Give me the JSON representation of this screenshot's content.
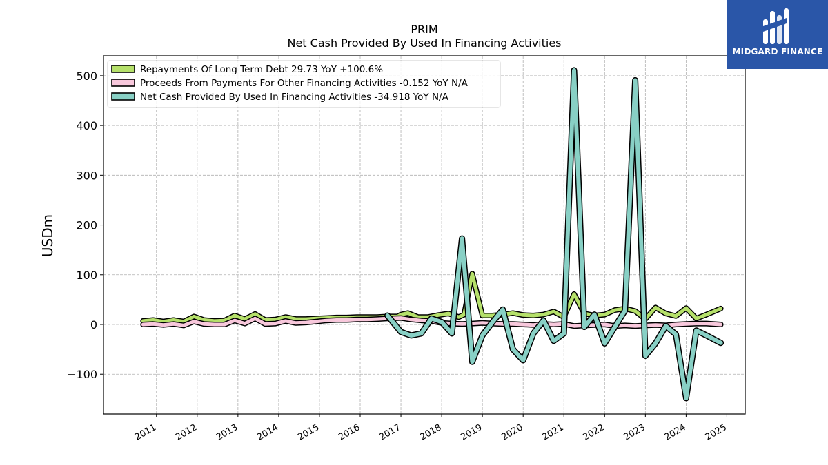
{
  "chart_data": {
    "type": "line",
    "title": "PRIM",
    "subtitle": "Net Cash Provided By Used In Financing Activities",
    "ylabel": "USDm",
    "xlabel": "",
    "ylim": [
      -180,
      540
    ],
    "xlim": [
      2009.7,
      2025.45
    ],
    "yticks": [
      -100,
      0,
      100,
      200,
      300,
      400,
      500
    ],
    "ytick_labels": [
      "−100",
      "0",
      "100",
      "200",
      "300",
      "400",
      "500"
    ],
    "xticks": [
      2011,
      2012,
      2013,
      2014,
      2015,
      2016,
      2017,
      2018,
      2019,
      2020,
      2021,
      2022,
      2023,
      2024,
      2025
    ],
    "xtick_labels": [
      "2011",
      "2012",
      "2013",
      "2014",
      "2015",
      "2016",
      "2017",
      "2018",
      "2019",
      "2020",
      "2021",
      "2022",
      "2023",
      "2024",
      "2025"
    ],
    "grid": true,
    "legend_position": "top-left",
    "series": [
      {
        "name": "Repayments Of Long Term Debt",
        "legend_label": "Repayments Of Long Term Debt  29.73 YoY +100.6%",
        "color": "#b5e06a",
        "points": [
          [
            2010.67,
            7
          ],
          [
            2010.92,
            9
          ],
          [
            2011.17,
            6
          ],
          [
            2011.42,
            9
          ],
          [
            2011.67,
            6
          ],
          [
            2011.92,
            16
          ],
          [
            2012.17,
            9
          ],
          [
            2012.42,
            7
          ],
          [
            2012.67,
            8
          ],
          [
            2012.92,
            18
          ],
          [
            2013.17,
            11
          ],
          [
            2013.42,
            21
          ],
          [
            2013.67,
            9
          ],
          [
            2013.92,
            10
          ],
          [
            2014.17,
            15
          ],
          [
            2014.42,
            11
          ],
          [
            2014.67,
            11
          ],
          [
            2014.92,
            12
          ],
          [
            2015.17,
            13
          ],
          [
            2015.42,
            14
          ],
          [
            2015.67,
            14
          ],
          [
            2015.92,
            15
          ],
          [
            2016.17,
            15
          ],
          [
            2016.42,
            15
          ],
          [
            2016.67,
            16
          ],
          [
            2016.92,
            16
          ],
          [
            2017.0,
            20
          ],
          [
            2017.17,
            23
          ],
          [
            2017.42,
            15
          ],
          [
            2017.67,
            15
          ],
          [
            2017.92,
            19
          ],
          [
            2018.17,
            22
          ],
          [
            2018.42,
            15
          ],
          [
            2018.55,
            20
          ],
          [
            2018.75,
            102
          ],
          [
            2019.0,
            18
          ],
          [
            2019.25,
            18
          ],
          [
            2019.5,
            20
          ],
          [
            2019.75,
            23
          ],
          [
            2020.0,
            19
          ],
          [
            2020.25,
            18
          ],
          [
            2020.5,
            20
          ],
          [
            2020.75,
            26
          ],
          [
            2021.0,
            15
          ],
          [
            2021.25,
            61
          ],
          [
            2021.5,
            22
          ],
          [
            2021.75,
            18
          ],
          [
            2022.0,
            20
          ],
          [
            2022.25,
            29
          ],
          [
            2022.5,
            32
          ],
          [
            2022.75,
            27
          ],
          [
            2023.0,
            11
          ],
          [
            2023.25,
            34
          ],
          [
            2023.5,
            22
          ],
          [
            2023.75,
            17
          ],
          [
            2024.0,
            33
          ],
          [
            2024.25,
            12
          ],
          [
            2024.5,
            20
          ],
          [
            2024.85,
            32
          ]
        ]
      },
      {
        "name": "Proceeds From Payments For Other Financing Activities",
        "legend_label": "Proceeds From Payments For Other Financing Activities  -0.152 YoY N/A",
        "color": "#f8c8dc",
        "points": [
          [
            2010.67,
            0
          ],
          [
            2010.92,
            1
          ],
          [
            2011.17,
            -1
          ],
          [
            2011.42,
            1
          ],
          [
            2011.67,
            -2
          ],
          [
            2011.92,
            6
          ],
          [
            2012.17,
            1
          ],
          [
            2012.42,
            0
          ],
          [
            2012.67,
            0
          ],
          [
            2012.92,
            8
          ],
          [
            2013.17,
            2
          ],
          [
            2013.42,
            12
          ],
          [
            2013.67,
            1
          ],
          [
            2013.92,
            2
          ],
          [
            2014.17,
            7
          ],
          [
            2014.42,
            3
          ],
          [
            2014.67,
            4
          ],
          [
            2014.92,
            6
          ],
          [
            2015.17,
            8
          ],
          [
            2015.42,
            9
          ],
          [
            2015.67,
            9
          ],
          [
            2015.92,
            10
          ],
          [
            2016.17,
            10
          ],
          [
            2016.42,
            11
          ],
          [
            2016.67,
            12
          ],
          [
            2017.0,
            13
          ],
          [
            2017.25,
            10
          ],
          [
            2017.5,
            8
          ],
          [
            2017.75,
            7
          ],
          [
            2018.0,
            3
          ],
          [
            2018.25,
            2
          ],
          [
            2018.5,
            1
          ],
          [
            2018.75,
            2
          ],
          [
            2019.0,
            3
          ],
          [
            2019.25,
            2
          ],
          [
            2019.5,
            1
          ],
          [
            2019.75,
            1
          ],
          [
            2020.0,
            0
          ],
          [
            2020.25,
            -1
          ],
          [
            2020.5,
            1
          ],
          [
            2020.75,
            0
          ],
          [
            2021.0,
            1
          ],
          [
            2021.25,
            -3
          ],
          [
            2021.5,
            -2
          ],
          [
            2021.75,
            -1
          ],
          [
            2022.0,
            0
          ],
          [
            2022.25,
            -3
          ],
          [
            2022.5,
            -2
          ],
          [
            2022.75,
            -3
          ],
          [
            2023.0,
            -2
          ],
          [
            2023.25,
            -1
          ],
          [
            2023.5,
            -2
          ],
          [
            2023.75,
            0
          ],
          [
            2024.0,
            1
          ],
          [
            2024.25,
            2
          ],
          [
            2024.5,
            2
          ],
          [
            2024.85,
            0
          ]
        ]
      },
      {
        "name": "Net Cash Provided By Used In Financing Activities",
        "legend_label": "Net Cash Provided By Used In Financing Activities  -34.918 YoY N/A",
        "color": "#88d0c5",
        "points": [
          [
            2016.67,
            18
          ],
          [
            2017.0,
            -15
          ],
          [
            2017.25,
            -22
          ],
          [
            2017.5,
            -18
          ],
          [
            2017.75,
            12
          ],
          [
            2018.0,
            5
          ],
          [
            2018.25,
            -18
          ],
          [
            2018.5,
            173
          ],
          [
            2018.75,
            -75
          ],
          [
            2019.0,
            -22
          ],
          [
            2019.25,
            5
          ],
          [
            2019.5,
            30
          ],
          [
            2019.75,
            -50
          ],
          [
            2020.0,
            -72
          ],
          [
            2020.25,
            -18
          ],
          [
            2020.5,
            8
          ],
          [
            2020.75,
            -33
          ],
          [
            2021.0,
            -18
          ],
          [
            2021.25,
            511
          ],
          [
            2021.5,
            -5
          ],
          [
            2021.75,
            20
          ],
          [
            2022.0,
            -38
          ],
          [
            2022.25,
            -5
          ],
          [
            2022.5,
            28
          ],
          [
            2022.75,
            491
          ],
          [
            2023.0,
            -63
          ],
          [
            2023.25,
            -38
          ],
          [
            2023.5,
            -3
          ],
          [
            2023.75,
            -20
          ],
          [
            2024.0,
            -148
          ],
          [
            2024.25,
            -12
          ],
          [
            2024.5,
            -22
          ],
          [
            2024.85,
            -37
          ]
        ]
      }
    ]
  },
  "logo": {
    "text": "MIDGARD FINANCE",
    "icon": "midgard-logo-icon",
    "color": "#2a56a8"
  }
}
